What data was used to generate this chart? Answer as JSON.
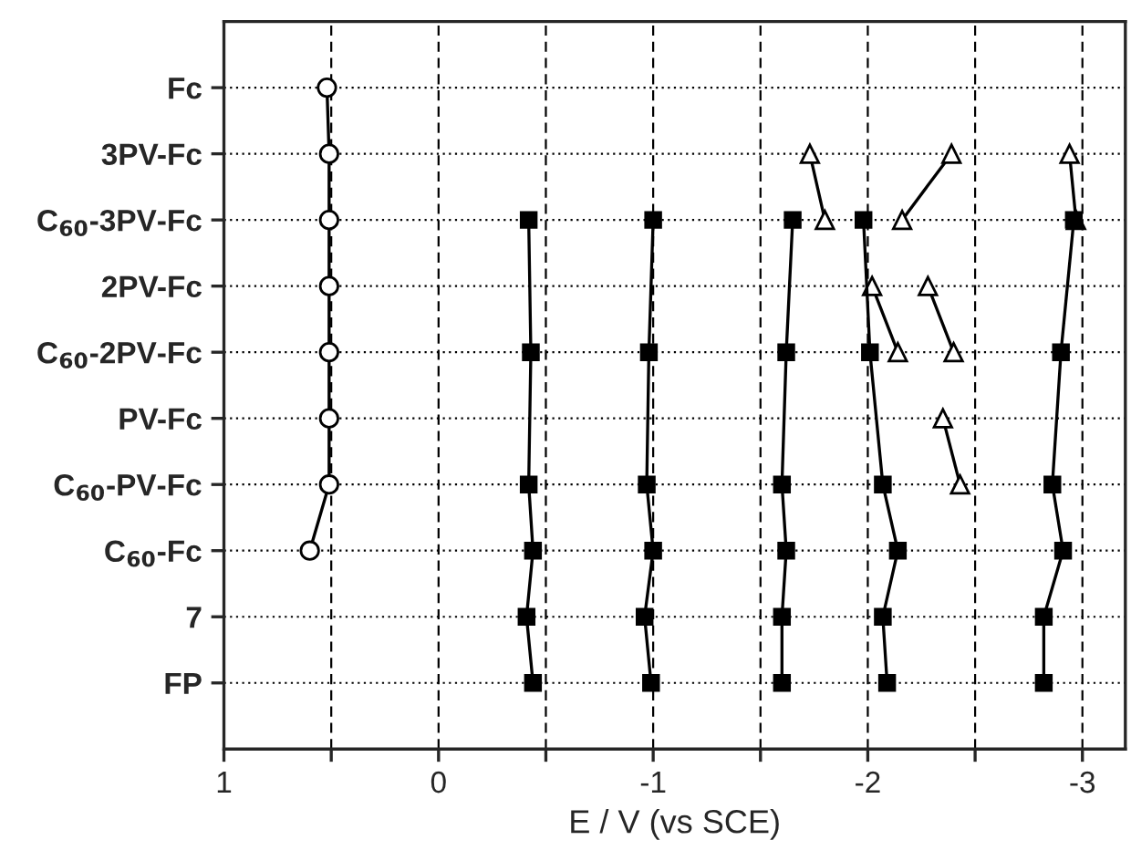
{
  "chart_data": {
    "type": "line",
    "orientation": "horizontal",
    "xlabel": "E / V (vs SCE)",
    "categories": [
      "Fc",
      "3PV-Fc",
      "C$_{60}$-3PV-Fc",
      "2PV-Fc",
      "C$_{60}$-2PV-Fc",
      "PV-Fc",
      "C$_{60}$-PV-Fc",
      "C$_{60}$-Fc",
      "7",
      "FP"
    ],
    "xlim": [
      1,
      -3.2
    ],
    "xticks": [
      1,
      {
        "value": 0.5,
        "label": null
      },
      0,
      {
        "value": -0.5,
        "label": null
      },
      -1,
      {
        "value": -1.5,
        "label": null
      },
      -2,
      {
        "value": -2.5,
        "label": null
      },
      -3
    ],
    "grid": true,
    "line_style": "solid",
    "series": [
      {
        "color": "#000000",
        "marker": "circle",
        "values": [
          0.52,
          0.51,
          0.51,
          0.51,
          0.51,
          0.51,
          0.51,
          0.6,
          null,
          null
        ]
      },
      {
        "color": "#000000",
        "marker": "square",
        "values": [
          null,
          null,
          -0.42,
          null,
          -0.43,
          null,
          -0.42,
          -0.44,
          -0.41,
          -0.44
        ]
      },
      {
        "color": "#000000",
        "marker": "square",
        "values": [
          null,
          null,
          -1.0,
          null,
          -0.98,
          null,
          -0.97,
          -1.0,
          -0.96,
          -0.99
        ]
      },
      {
        "color": "#000000",
        "marker": "square",
        "values": [
          null,
          null,
          -1.65,
          null,
          -1.62,
          null,
          -1.6,
          -1.62,
          -1.6,
          -1.6
        ]
      },
      {
        "color": "#000000",
        "marker": "square",
        "values": [
          null,
          null,
          -1.98,
          null,
          -2.01,
          null,
          -2.07,
          -2.14,
          -2.07,
          -2.09
        ]
      },
      {
        "color": "#000000",
        "marker": "square",
        "values": [
          null,
          null,
          -2.96,
          null,
          -2.9,
          null,
          -2.86,
          -2.91,
          -2.82,
          -2.82
        ]
      },
      {
        "color": "#000000",
        "marker": "triangle",
        "values": [
          null,
          -1.73,
          -1.8,
          null,
          null,
          null,
          null,
          null,
          null,
          null
        ]
      },
      {
        "color": "#000000",
        "marker": "triangle",
        "values": [
          null,
          -2.39,
          -2.16,
          null,
          null,
          null,
          null,
          null,
          null,
          null
        ]
      },
      {
        "color": "#000000",
        "marker": "triangle",
        "values": [
          null,
          -2.94,
          -2.97,
          null,
          null,
          null,
          null,
          null,
          null,
          null
        ]
      },
      {
        "color": "#000000",
        "marker": "triangle",
        "values": [
          null,
          null,
          null,
          -2.02,
          -2.14,
          null,
          null,
          null,
          null,
          null
        ]
      },
      {
        "color": "#000000",
        "marker": "triangle",
        "values": [
          null,
          null,
          null,
          -2.28,
          -2.4,
          null,
          null,
          null,
          null,
          null
        ]
      },
      {
        "color": "#000000",
        "marker": "triangle",
        "values": [
          null,
          null,
          null,
          null,
          null,
          -2.35,
          -2.43,
          null,
          null,
          null
        ]
      }
    ]
  }
}
